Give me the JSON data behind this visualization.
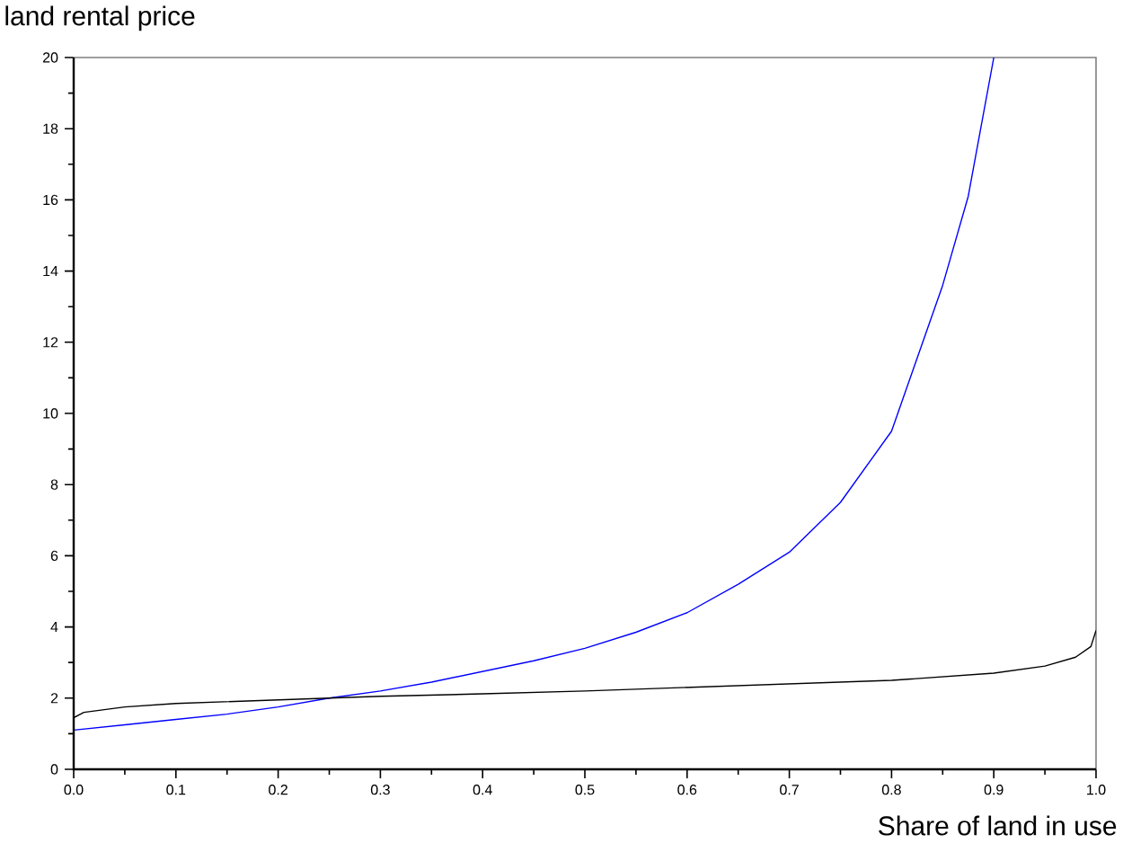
{
  "chart_data": {
    "type": "line",
    "xlabel": "Share of land in use",
    "ylabel": "land rental price",
    "xlim": [
      0,
      1
    ],
    "ylim": [
      0,
      20
    ],
    "xticks": [
      {
        "value": 0,
        "label": "0.0"
      },
      {
        "value": 0.1,
        "label": "0.1"
      },
      {
        "value": 0.2,
        "label": "0.2"
      },
      {
        "value": 0.3,
        "label": "0.3"
      },
      {
        "value": 0.4,
        "label": "0.4"
      },
      {
        "value": 0.5,
        "label": "0.5"
      },
      {
        "value": 0.6,
        "label": "0.6"
      },
      {
        "value": 0.7,
        "label": "0.7"
      },
      {
        "value": 0.8,
        "label": "0.8"
      },
      {
        "value": 0.9,
        "label": "0.9"
      },
      {
        "value": 1,
        "label": "1.0"
      }
    ],
    "yticks": [
      0,
      2,
      4,
      6,
      8,
      10,
      12,
      14,
      16,
      18,
      20
    ],
    "grid": false,
    "marker": "none",
    "line_style": "solid",
    "series": [
      {
        "color": "#0000ff",
        "x": [
          0,
          0.05,
          0.1,
          0.15,
          0.2,
          0.25,
          0.3,
          0.35,
          0.4,
          0.45,
          0.5,
          0.55,
          0.6,
          0.65,
          0.7,
          0.75,
          0.8,
          0.85,
          0.875,
          0.9
        ],
        "values": [
          1.1,
          1.25,
          1.4,
          1.55,
          1.75,
          2.0,
          2.2,
          2.45,
          2.75,
          3.05,
          3.4,
          3.85,
          4.4,
          5.2,
          6.1,
          7.5,
          9.5,
          13.6,
          16.1,
          20
        ]
      },
      {
        "color": "#000000",
        "x": [
          0,
          0.01,
          0.05,
          0.1,
          0.2,
          0.3,
          0.4,
          0.5,
          0.6,
          0.7,
          0.8,
          0.9,
          0.95,
          0.98,
          0.995,
          1.0
        ],
        "values": [
          1.45,
          1.6,
          1.75,
          1.85,
          1.95,
          2.05,
          2.12,
          2.2,
          2.3,
          2.4,
          2.5,
          2.7,
          2.9,
          3.15,
          3.45,
          3.9
        ]
      }
    ]
  }
}
